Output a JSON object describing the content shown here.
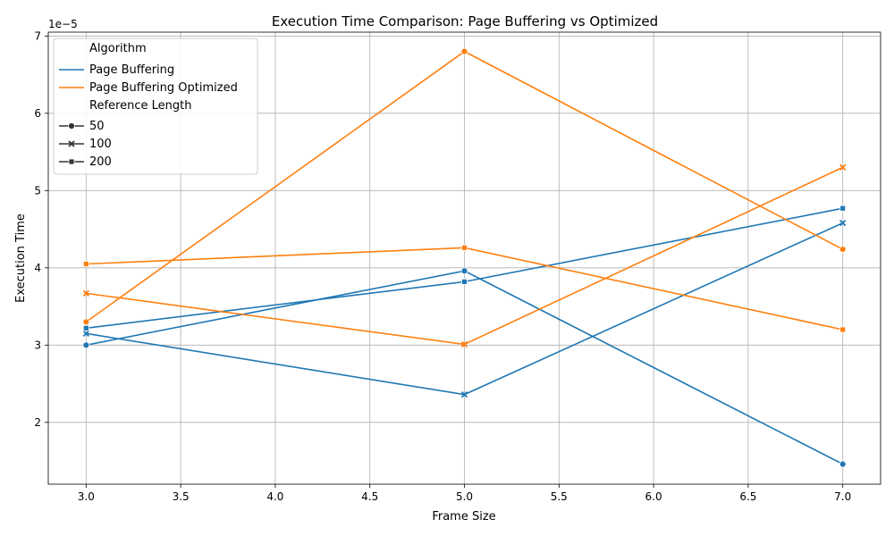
{
  "chart_data": {
    "type": "line",
    "title": "Execution Time Comparison: Page Buffering vs Optimized",
    "xlabel": "Frame Size",
    "ylabel": "Execution Time",
    "y_offset_label": "1e−5",
    "x_ticks": [
      "3.0",
      "3.5",
      "4.0",
      "4.5",
      "5.0",
      "5.5",
      "6.0",
      "6.5",
      "7.0"
    ],
    "y_ticks": [
      "2",
      "3",
      "4",
      "5",
      "6",
      "7"
    ],
    "xlim": [
      2.8,
      7.2
    ],
    "ylim": [
      1.2,
      7.05
    ],
    "grid": true,
    "legend_placement": "upper-left",
    "legend": {
      "hue_title": "Algorithm",
      "style_title": "Reference Length",
      "hue_entries": [
        {
          "label": "Page Buffering",
          "color": "#1f77b4"
        },
        {
          "label": "Page Buffering Optimized",
          "color": "#ff7f0e"
        }
      ],
      "style_entries": [
        {
          "label": "50",
          "marker": "circle"
        },
        {
          "label": "100",
          "marker": "x"
        },
        {
          "label": "200",
          "marker": "square"
        }
      ]
    },
    "series": [
      {
        "algorithm": "Page Buffering",
        "ref_length": "50",
        "color": "#1f77b4",
        "marker": "circle",
        "x": [
          3,
          5,
          7
        ],
        "y": [
          3.0,
          3.96,
          1.46
        ]
      },
      {
        "algorithm": "Page Buffering",
        "ref_length": "100",
        "color": "#1f77b4",
        "marker": "x",
        "x": [
          3,
          5,
          7
        ],
        "y": [
          3.15,
          2.36,
          4.58
        ]
      },
      {
        "algorithm": "Page Buffering",
        "ref_length": "200",
        "color": "#1f77b4",
        "marker": "square",
        "x": [
          3,
          5,
          7
        ],
        "y": [
          3.22,
          3.82,
          4.77
        ]
      },
      {
        "algorithm": "Page Buffering Optimized",
        "ref_length": "50",
        "color": "#ff7f0e",
        "marker": "circle",
        "x": [
          3,
          5,
          7
        ],
        "y": [
          3.3,
          6.8,
          4.24
        ]
      },
      {
        "algorithm": "Page Buffering Optimized",
        "ref_length": "100",
        "color": "#ff7f0e",
        "marker": "x",
        "x": [
          3,
          5,
          7
        ],
        "y": [
          3.67,
          3.01,
          5.3
        ]
      },
      {
        "algorithm": "Page Buffering Optimized",
        "ref_length": "200",
        "color": "#ff7f0e",
        "marker": "square",
        "x": [
          3,
          5,
          7
        ],
        "y": [
          4.05,
          4.26,
          3.2
        ]
      }
    ]
  }
}
